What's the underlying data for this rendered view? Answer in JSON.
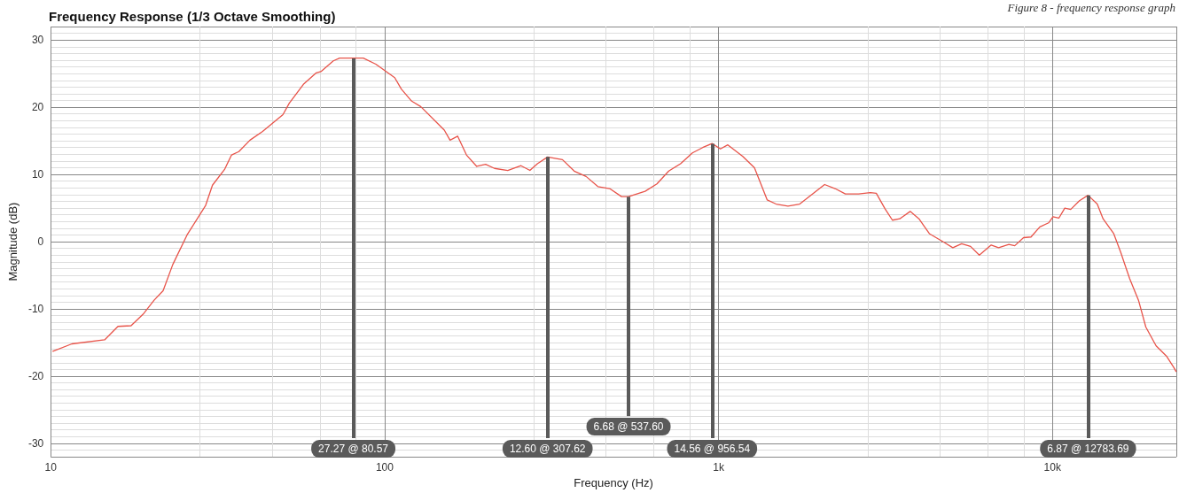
{
  "chart_data": {
    "type": "line",
    "title": "Frequency Response (1/3 Octave Smoothing)",
    "xlabel": "Frequency (Hz)",
    "ylabel": "Magnitude (dB)",
    "log": "x",
    "grid": true,
    "marker": "none",
    "line_style": "solid",
    "xlim": [
      10,
      23500
    ],
    "xticks": [
      {
        "value": 10,
        "label": "10"
      },
      {
        "value": 100,
        "label": "100"
      },
      {
        "value": 1000,
        "label": "1k"
      },
      {
        "value": 10000,
        "label": "10k"
      }
    ],
    "ylim": [
      -32,
      32
    ],
    "yticks": [
      -30,
      -20,
      -10,
      0,
      10,
      20,
      30
    ],
    "series": [
      {
        "color": "#e8544a",
        "x": [
          10.15,
          11.57,
          14.5,
          15.9,
          17.4,
          18.9,
          20.4,
          21.7,
          23.2,
          25.6,
          29.1,
          30.5,
          33.2,
          34.8,
          36.6,
          39.5,
          43.1,
          49.6,
          51.8,
          57.1,
          62.3,
          64.4,
          70.2,
          73.3,
          77.4,
          80.57,
          86.3,
          94.1,
          107.2,
          112.2,
          120.5,
          128.2,
          150.9,
          157,
          165.4,
          175.8,
          188.7,
          200.6,
          213.3,
          233.7,
          256.1,
          272.3,
          286.7,
          307.62,
          340.8,
          369.6,
          401.2,
          435.1,
          471.9,
          512.2,
          537.6,
          602.6,
          653.9,
          709.3,
          769.4,
          835.1,
          896.4,
          956.54,
          1013,
          1066,
          1180,
          1281,
          1399,
          1487,
          1614,
          1750,
          1937,
          2078,
          2233,
          2398,
          2627,
          2849,
          2968,
          3152,
          3317,
          3490,
          3749,
          3983,
          4279,
          4734,
          5031,
          5347,
          5684,
          6040,
          6555,
          6897,
          7405,
          7711,
          8193,
          8625,
          9167,
          9740,
          10040,
          10450,
          10890,
          11340,
          12050,
          12783.69,
          13620,
          14180,
          15260,
          16020,
          17030,
          18100,
          19040,
          20440,
          21940,
          23090,
          23450
        ],
        "values": [
          -16.3,
          -15.2,
          -14.6,
          -12.6,
          -12.5,
          -10.8,
          -8.7,
          -7.3,
          -3.4,
          1.0,
          5.4,
          8.4,
          10.8,
          12.9,
          13.4,
          15.1,
          16.4,
          18.9,
          20.6,
          23.4,
          25.1,
          25.3,
          26.9,
          27.3,
          27.3,
          27.3,
          27.3,
          26.4,
          24.4,
          22.7,
          20.9,
          20.1,
          16.6,
          15.1,
          15.7,
          12.9,
          11.2,
          11.5,
          10.9,
          10.6,
          11.3,
          10.6,
          11.6,
          12.6,
          12.2,
          10.5,
          9.7,
          8.2,
          7.9,
          6.7,
          6.7,
          7.5,
          8.6,
          10.5,
          11.6,
          13.2,
          14.0,
          14.6,
          13.8,
          14.4,
          12.7,
          11.0,
          6.2,
          5.6,
          5.3,
          5.6,
          7.3,
          8.5,
          7.9,
          7.1,
          7.1,
          7.3,
          7.2,
          4.9,
          3.2,
          3.4,
          4.5,
          3.4,
          1.2,
          -0.1,
          -0.9,
          -0.3,
          -0.7,
          -2.0,
          -0.5,
          -0.9,
          -0.4,
          -0.6,
          0.6,
          0.7,
          2.2,
          2.8,
          3.7,
          3.5,
          5.0,
          4.8,
          6.1,
          6.9,
          5.6,
          3.4,
          1.2,
          -1.6,
          -5.5,
          -8.7,
          -12.7,
          -15.5,
          -17.0,
          -18.7,
          -19.3
        ]
      }
    ],
    "annotations": [
      "Figure 8 - frequency response graph",
      {
        "text": "27.27 @ 80.57",
        "x": 80.57,
        "y": 27.27
      },
      {
        "text": "12.60 @ 307.62",
        "x": 307.62,
        "y": 12.6
      },
      {
        "text": "6.68 @ 537.60",
        "x": 537.6,
        "y": 6.68
      },
      {
        "text": "14.56 @ 956.54",
        "x": 956.54,
        "y": 14.56
      },
      {
        "text": "6.87 @ 12783.69",
        "x": 12783.69,
        "y": 6.87
      }
    ]
  }
}
